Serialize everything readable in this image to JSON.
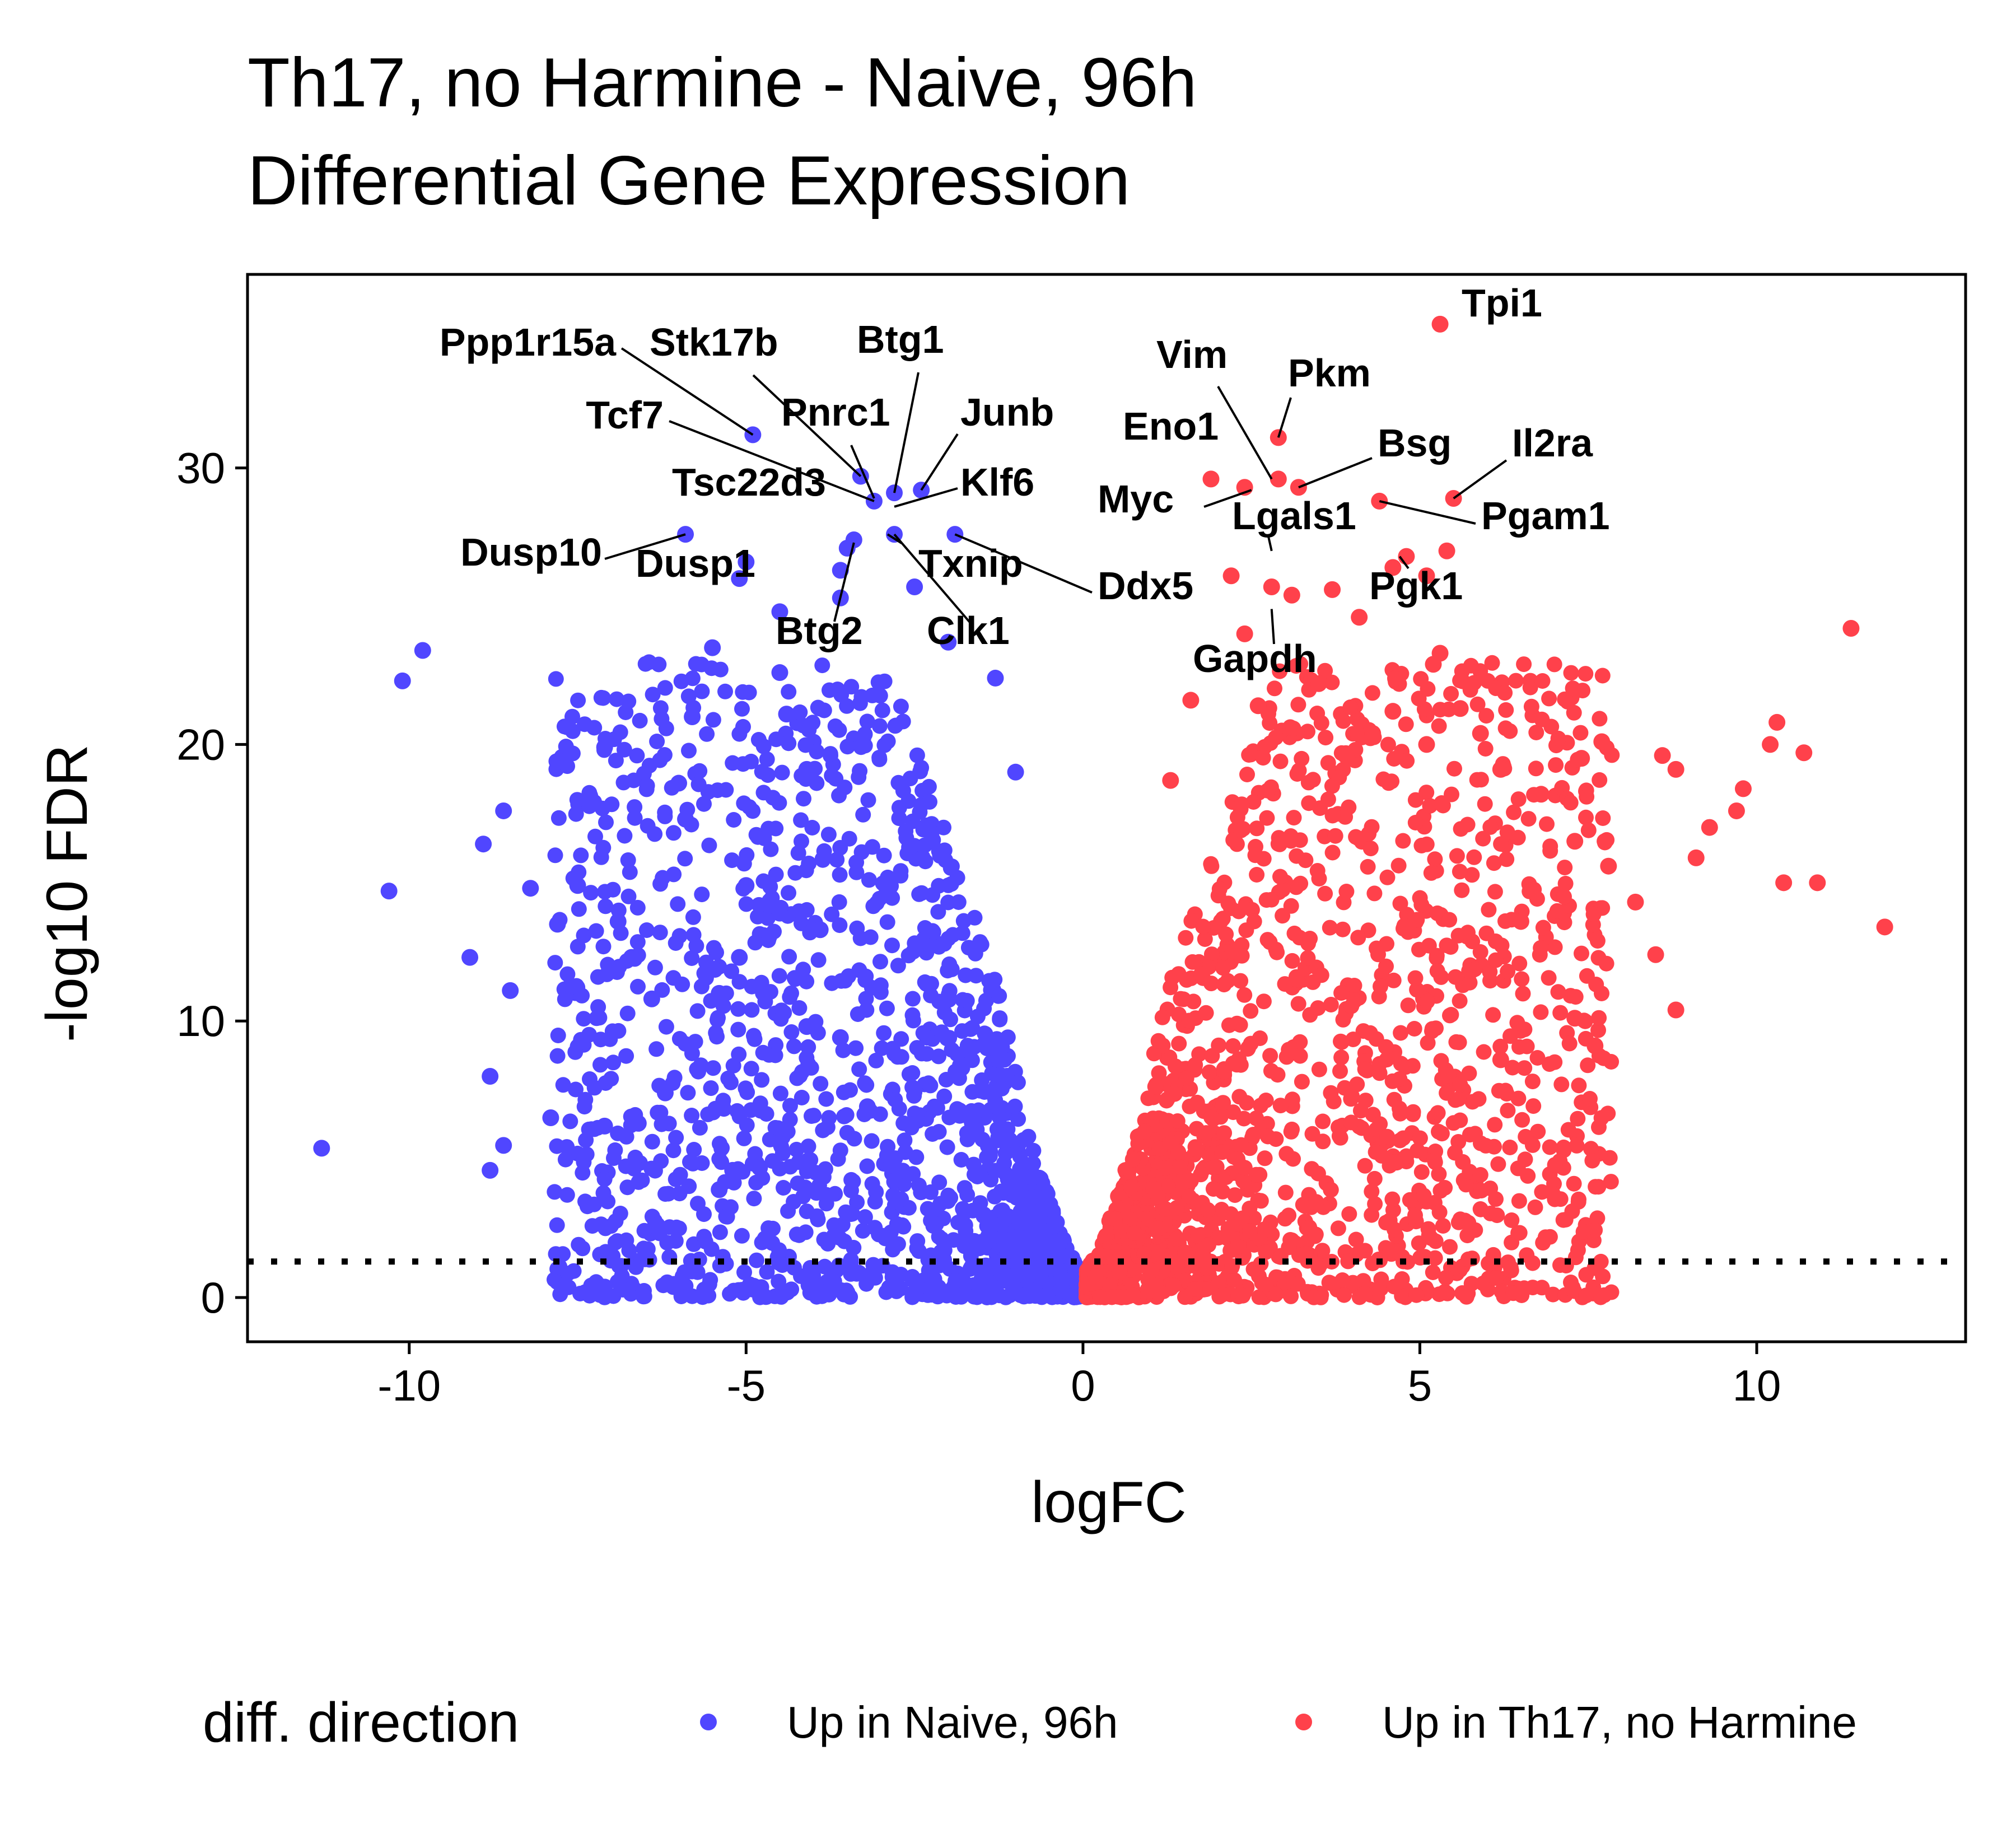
{
  "chart_data": {
    "type": "scatter",
    "title_line1": "Th17, no Harmine - Naive, 96h",
    "title_line2": "Differential Gene Expression",
    "xlabel": "logFC",
    "ylabel": "-log10 FDR",
    "xlim": [
      -12.4,
      13.1
    ],
    "ylim": [
      -1.6,
      37.0
    ],
    "xticks": [
      -10,
      -5,
      0,
      5,
      10
    ],
    "yticks": [
      0,
      10,
      20,
      30
    ],
    "threshold_y": 1.3,
    "legend": {
      "title": "diff. direction",
      "position": "bottom",
      "entries": [
        {
          "name": "Up in Naive, 96h",
          "color": "#5046FF"
        },
        {
          "name": "Up in Th17, no Harmine",
          "color": "#FF414B"
        }
      ]
    },
    "series": [
      {
        "name": "Up in Naive, 96h",
        "color": "#5046FF",
        "side": -1,
        "points": [
          [
            -11.3,
            5.4
          ],
          [
            -10.3,
            14.7
          ],
          [
            -10.1,
            22.3
          ],
          [
            -9.8,
            23.4
          ],
          [
            -8.9,
            16.4
          ],
          [
            -8.8,
            4.6
          ],
          [
            -8.8,
            8.0
          ],
          [
            -8.6,
            17.6
          ],
          [
            -8.6,
            5.5
          ],
          [
            -9.1,
            12.3
          ],
          [
            -8.5,
            11.1
          ],
          [
            -7.9,
            6.5
          ],
          [
            -7.1,
            19.9
          ],
          [
            -7.1,
            6.2
          ],
          [
            -6.6,
            6.3
          ],
          [
            -6.5,
            1.4
          ],
          [
            -6.2,
            7.4
          ],
          [
            -6.0,
            18.6
          ],
          [
            -5.9,
            17.3
          ],
          [
            -5.8,
            21.0
          ],
          [
            -5.9,
            27.6
          ],
          [
            -5.5,
            23.5
          ],
          [
            -5.4,
            11.0
          ],
          [
            -5.1,
            26.0
          ],
          [
            -5.0,
            26.6
          ],
          [
            -4.9,
            31.2
          ],
          [
            -4.5,
            24.8
          ],
          [
            -4.5,
            22.6
          ],
          [
            -4.4,
            21.1
          ],
          [
            -4.1,
            19.1
          ],
          [
            -3.6,
            26.3
          ],
          [
            -3.5,
            27.1
          ],
          [
            -3.3,
            29.7
          ],
          [
            -3.1,
            28.8
          ],
          [
            -2.8,
            29.1
          ],
          [
            -2.4,
            29.2
          ],
          [
            -2.8,
            27.6
          ],
          [
            -1.9,
            27.6
          ],
          [
            -3.4,
            27.4
          ],
          [
            -3.6,
            25.3
          ],
          [
            -2.5,
            25.7
          ],
          [
            -2.0,
            23.7
          ],
          [
            -1.3,
            22.4
          ],
          [
            -1.0,
            19.0
          ],
          [
            -5.0,
            14.9
          ],
          [
            -5.1,
            12.3
          ],
          [
            -4.5,
            13.9
          ],
          [
            -3.9,
            13.3
          ],
          [
            -4.1,
            9.8
          ],
          [
            -3.6,
            9.4
          ],
          [
            -3.2,
            6.9
          ],
          [
            -5.4,
            3.9
          ],
          [
            -5.2,
            4.6
          ],
          [
            -4.8,
            4.7
          ],
          [
            -6.4,
            10.8
          ],
          [
            -7.5,
            14.9
          ],
          [
            -7.8,
            13.5
          ],
          [
            -8.2,
            14.8
          ],
          [
            -6.9,
            13.6
          ],
          [
            -6.7,
            12.3
          ]
        ]
      },
      {
        "name": "Up in Th17, no Harmine",
        "color": "#FF414B",
        "side": 1,
        "points": [
          [
            5.3,
            35.2
          ],
          [
            2.9,
            31.1
          ],
          [
            1.9,
            29.6
          ],
          [
            2.4,
            29.3
          ],
          [
            2.9,
            29.6
          ],
          [
            3.2,
            29.3
          ],
          [
            5.5,
            28.9
          ],
          [
            4.4,
            28.8
          ],
          [
            5.4,
            27.0
          ],
          [
            4.8,
            26.8
          ],
          [
            5.1,
            26.1
          ],
          [
            2.8,
            25.7
          ],
          [
            2.2,
            26.1
          ],
          [
            3.1,
            25.4
          ],
          [
            3.7,
            25.6
          ],
          [
            4.1,
            24.6
          ],
          [
            4.6,
            26.4
          ],
          [
            2.4,
            24.0
          ],
          [
            5.3,
            23.3
          ],
          [
            5.2,
            22.9
          ],
          [
            11.4,
            24.2
          ],
          [
            10.3,
            20.8
          ],
          [
            10.2,
            20.0
          ],
          [
            10.7,
            19.7
          ],
          [
            9.8,
            18.4
          ],
          [
            9.7,
            17.6
          ],
          [
            9.3,
            17.0
          ],
          [
            11.9,
            13.4
          ],
          [
            10.4,
            15.0
          ],
          [
            10.9,
            15.0
          ],
          [
            8.6,
            19.6
          ],
          [
            8.8,
            19.1
          ],
          [
            7.7,
            20.1
          ],
          [
            7.4,
            19.5
          ],
          [
            9.1,
            15.9
          ],
          [
            8.8,
            10.4
          ],
          [
            8.5,
            12.4
          ],
          [
            7.6,
            9.1
          ],
          [
            7.3,
            10.1
          ],
          [
            6.2,
            8.6
          ],
          [
            6.8,
            18.2
          ],
          [
            6.2,
            19.1
          ],
          [
            5.9,
            20.4
          ],
          [
            5.6,
            21.3
          ],
          [
            5.1,
            20.0
          ],
          [
            4.6,
            21.2
          ],
          [
            4.3,
            20.4
          ],
          [
            3.9,
            19.6
          ],
          [
            3.5,
            22.2
          ],
          [
            2.6,
            21.4
          ],
          [
            1.6,
            21.6
          ],
          [
            1.3,
            18.7
          ],
          [
            7.3,
            16.5
          ],
          [
            7.8,
            15.6
          ],
          [
            8.2,
            14.3
          ],
          [
            6.5,
            13.6
          ]
        ]
      }
    ],
    "labels": [
      {
        "text": "Tpi1",
        "side": 1,
        "x": 5.3,
        "y": 35.2
      },
      {
        "text": "Pkm",
        "side": 1,
        "x": 2.9,
        "y": 31.1
      },
      {
        "text": "Vim",
        "side": 1,
        "x": 2.8,
        "y": 29.6
      },
      {
        "text": "Eno1",
        "side": 1,
        "x": 2.4,
        "y": 29.5
      },
      {
        "text": "Bsg",
        "side": 1,
        "x": 3.2,
        "y": 29.3
      },
      {
        "text": "Il2ra",
        "side": 1,
        "x": 5.5,
        "y": 28.9
      },
      {
        "text": "Myc",
        "side": 1,
        "x": 2.5,
        "y": 29.2
      },
      {
        "text": "Lgals1",
        "side": 1,
        "x": 2.8,
        "y": 27.0
      },
      {
        "text": "Pgam1",
        "side": 1,
        "x": 4.4,
        "y": 28.8
      },
      {
        "text": "Pgk1",
        "side": 1,
        "x": 4.7,
        "y": 26.8
      },
      {
        "text": "Gapdh",
        "side": 1,
        "x": 2.8,
        "y": 24.9
      },
      {
        "text": "Ppp1r15a",
        "side": -1,
        "x": -4.9,
        "y": 31.2
      },
      {
        "text": "Stk17b",
        "side": -1,
        "x": -3.3,
        "y": 29.7
      },
      {
        "text": "Btg1",
        "side": -1,
        "x": -2.8,
        "y": 29.1
      },
      {
        "text": "Tcf7",
        "side": -1,
        "x": -3.1,
        "y": 28.8
      },
      {
        "text": "Pnrc1",
        "side": -1,
        "x": -3.1,
        "y": 28.9
      },
      {
        "text": "Junb",
        "side": -1,
        "x": -2.4,
        "y": 29.2
      },
      {
        "text": "Klf6",
        "side": -1,
        "x": -2.8,
        "y": 28.6
      },
      {
        "text": "Tsc22d3",
        "side": -1,
        "x": -4.1,
        "y": 28.7
      },
      {
        "text": "Dusp10",
        "side": -1,
        "x": -5.9,
        "y": 27.6
      },
      {
        "text": "Dusp1",
        "side": -1,
        "x": -5.2,
        "y": 26.3
      },
      {
        "text": "Txnip",
        "side": -1,
        "x": -2.9,
        "y": 27.6
      },
      {
        "text": "Ddx5",
        "side": -1,
        "x": -1.9,
        "y": 27.6
      },
      {
        "text": "Btg2",
        "side": -1,
        "x": -3.4,
        "y": 27.3
      },
      {
        "text": "Clk1",
        "side": -1,
        "x": -2.8,
        "y": 27.6
      }
    ]
  }
}
